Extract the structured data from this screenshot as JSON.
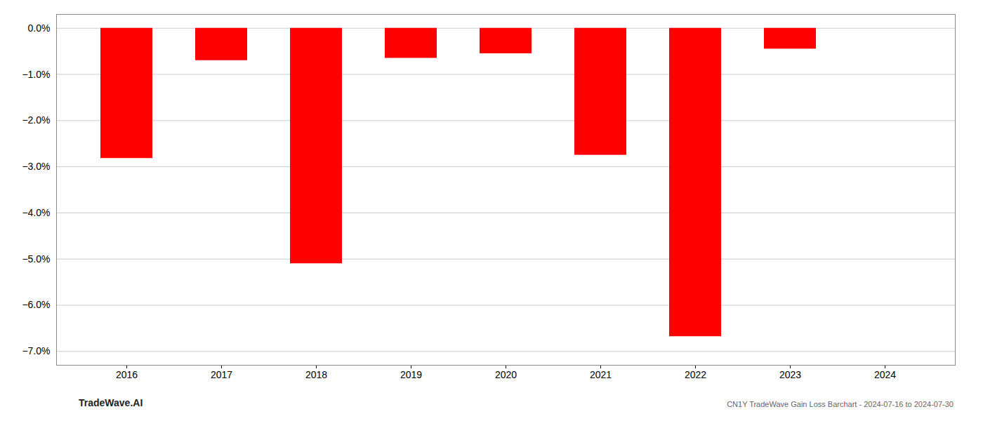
{
  "chart_data": {
    "type": "bar",
    "categories": [
      "2016",
      "2017",
      "2018",
      "2019",
      "2020",
      "2021",
      "2022",
      "2023",
      "2024"
    ],
    "values": [
      -2.82,
      -0.7,
      -5.1,
      -0.65,
      -0.55,
      -2.75,
      -6.68,
      -0.45,
      0.0
    ],
    "color": "#ff0000",
    "ylim": [
      -7.3,
      0.3
    ],
    "yticks": [
      {
        "value": 0.0,
        "label": "0.0%"
      },
      {
        "value": -1.0,
        "label": "−1.0%"
      },
      {
        "value": -2.0,
        "label": "−2.0%"
      },
      {
        "value": -3.0,
        "label": "−3.0%"
      },
      {
        "value": -4.0,
        "label": "−4.0%"
      },
      {
        "value": -5.0,
        "label": "−5.0%"
      },
      {
        "value": -6.0,
        "label": "−6.0%"
      },
      {
        "value": -7.0,
        "label": "−7.0%"
      }
    ],
    "grid": true,
    "annotations": [
      "TradeWave.AI",
      "CN1Y TradeWave Gain Loss Barchart - 2024-07-16 to 2024-07-30"
    ]
  }
}
